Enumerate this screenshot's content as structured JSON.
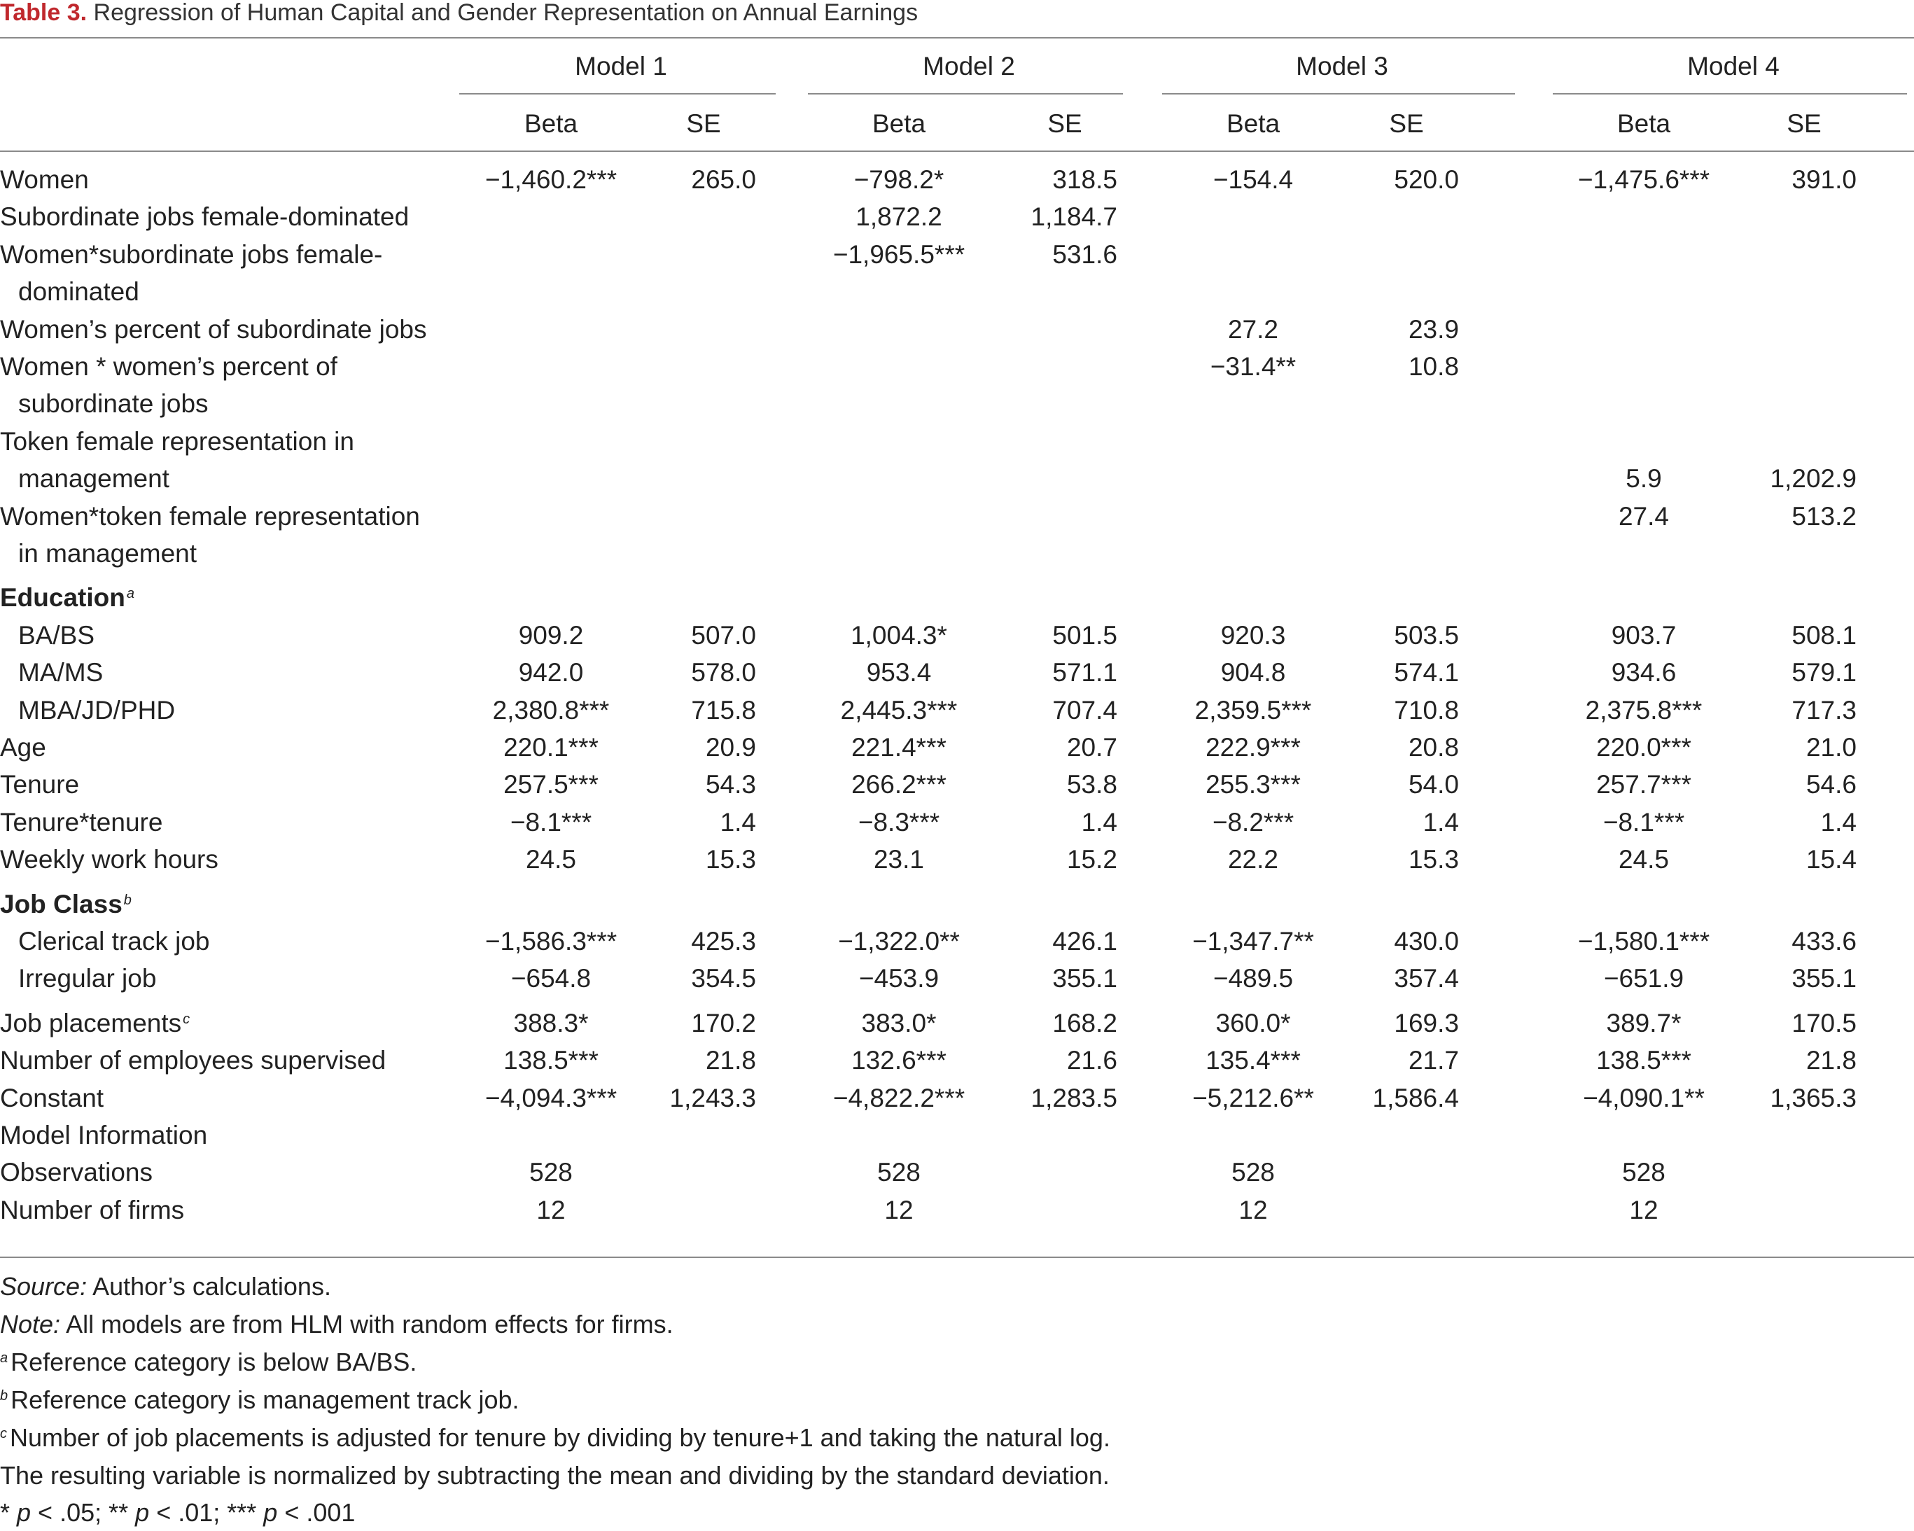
{
  "title": {
    "label": "Table 3.",
    "text": "Regression of Human Capital and Gender Representation on Annual Earnings"
  },
  "colors": {
    "label": "#c0282d",
    "text": "#222222",
    "rule": "#8a8a8a"
  },
  "models": [
    "Model 1",
    "Model 2",
    "Model 3",
    "Model 4"
  ],
  "subheaders": {
    "beta": "Beta",
    "se": "SE"
  },
  "rows": [
    {
      "label": "Women",
      "vals": [
        "−1,460.2***",
        "265.0",
        "−798.2*",
        "318.5",
        "−154.4",
        "520.0",
        "−1,475.6***",
        "391.0"
      ]
    },
    {
      "label": "Subordinate jobs female-dominated",
      "vals": [
        "",
        "",
        "1,872.2",
        "1,184.7",
        "",
        "",
        "",
        ""
      ]
    },
    {
      "label": "Women*subordinate jobs female-",
      "vals": [
        "",
        "",
        "−1,965.5***",
        "531.6",
        "",
        "",
        "",
        ""
      ]
    },
    {
      "label": "dominated",
      "indent": true,
      "vals": [
        "",
        "",
        "",
        "",
        "",
        "",
        "",
        ""
      ]
    },
    {
      "label": "Women’s percent of subordinate jobs",
      "vals": [
        "",
        "",
        "",
        "",
        "27.2",
        "23.9",
        "",
        ""
      ]
    },
    {
      "label": "Women * women’s percent of",
      "vals": [
        "",
        "",
        "",
        "",
        "−31.4**",
        "10.8",
        "",
        ""
      ]
    },
    {
      "label": "subordinate jobs",
      "indent": true,
      "vals": [
        "",
        "",
        "",
        "",
        "",
        "",
        "",
        ""
      ]
    },
    {
      "label": "Token female representation in",
      "vals": [
        "",
        "",
        "",
        "",
        "",
        "",
        "",
        ""
      ]
    },
    {
      "label": "management",
      "indent": true,
      "vals": [
        "",
        "",
        "",
        "",
        "",
        "",
        "5.9",
        "1,202.9"
      ]
    },
    {
      "label": "Women*token female representation",
      "vals": [
        "",
        "",
        "",
        "",
        "",
        "",
        "27.4",
        "513.2"
      ]
    },
    {
      "label": "in management",
      "indent": true,
      "vals": [
        "",
        "",
        "",
        "",
        "",
        "",
        "",
        ""
      ]
    },
    {
      "label": "Education",
      "bold": true,
      "sup": "a",
      "vals": [
        "",
        "",
        "",
        "",
        "",
        "",
        "",
        ""
      ]
    },
    {
      "label": "BA/BS",
      "indent": true,
      "vals": [
        "909.2",
        "507.0",
        "1,004.3*",
        "501.5",
        "920.3",
        "503.5",
        "903.7",
        "508.1"
      ]
    },
    {
      "label": "MA/MS",
      "indent": true,
      "vals": [
        "942.0",
        "578.0",
        "953.4",
        "571.1",
        "904.8",
        "574.1",
        "934.6",
        "579.1"
      ]
    },
    {
      "label": "MBA/JD/PHD",
      "indent": true,
      "vals": [
        "2,380.8***",
        "715.8",
        "2,445.3***",
        "707.4",
        "2,359.5***",
        "710.8",
        "2,375.8***",
        "717.3"
      ]
    },
    {
      "label": "Age",
      "vals": [
        "220.1***",
        "20.9",
        "221.4***",
        "20.7",
        "222.9***",
        "20.8",
        "220.0***",
        "21.0"
      ]
    },
    {
      "label": "Tenure",
      "vals": [
        "257.5***",
        "54.3",
        "266.2***",
        "53.8",
        "255.3***",
        "54.0",
        "257.7***",
        "54.6"
      ]
    },
    {
      "label": "Tenure*tenure",
      "vals": [
        "−8.1***",
        "1.4",
        "−8.3***",
        "1.4",
        "−8.2***",
        "1.4",
        "−8.1***",
        "1.4"
      ]
    },
    {
      "label": "Weekly work hours",
      "vals": [
        "24.5",
        "15.3",
        "23.1",
        "15.2",
        "22.2",
        "15.3",
        "24.5",
        "15.4"
      ]
    },
    {
      "label": "Job Class",
      "bold": true,
      "sup": "b",
      "vals": [
        "",
        "",
        "",
        "",
        "",
        "",
        "",
        ""
      ]
    },
    {
      "label": "Clerical track job",
      "indent": true,
      "vals": [
        "−1,586.3***",
        "425.3",
        "−1,322.0**",
        "426.1",
        "−1,347.7**",
        "430.0",
        "−1,580.1***",
        "433.6"
      ]
    },
    {
      "label": "Irregular job",
      "indent": true,
      "vals": [
        "−654.8",
        "354.5",
        "−453.9",
        "355.1",
        "−489.5",
        "357.4",
        "−651.9",
        "355.1"
      ]
    },
    {
      "label": "Job placements",
      "sup": "c",
      "vals": [
        "388.3*",
        "170.2",
        "383.0*",
        "168.2",
        "360.0*",
        "169.3",
        "389.7*",
        "170.5"
      ]
    },
    {
      "label": "Number of employees supervised",
      "vals": [
        "138.5***",
        "21.8",
        "132.6***",
        "21.6",
        "135.4***",
        "21.7",
        "138.5***",
        "21.8"
      ]
    },
    {
      "label": "Constant",
      "vals": [
        "−4,094.3***",
        "1,243.3",
        "−4,822.2***",
        "1,283.5",
        "−5,212.6**",
        "1,586.4",
        "−4,090.1**",
        "1,365.3"
      ]
    },
    {
      "label": "Model Information",
      "vals": [
        "",
        "",
        "",
        "",
        "",
        "",
        "",
        ""
      ]
    },
    {
      "label": "Observations",
      "vals": [
        "528",
        "",
        "528",
        "",
        "528",
        "",
        "528",
        ""
      ]
    },
    {
      "label": "Number of firms",
      "vals": [
        "12",
        "",
        "12",
        "",
        "12",
        "",
        "12",
        ""
      ]
    }
  ],
  "notes": {
    "source_label": "Source:",
    "source_text": " Author’s calculations.",
    "note_label": "Note:",
    "note_text": " All models are from HLM with random effects for firms.",
    "a_mark": "a",
    "a_text": "Reference category is below BA/BS.",
    "b_mark": "b",
    "b_text": "Reference category is management track job.",
    "c_mark": "c",
    "c_text": "Number of job placements is adjusted for tenure by dividing by tenure+1 and taking the natural log.",
    "c_text2": "The resulting variable is normalized by subtracting the mean and dividing by the standard deviation.",
    "sig_1": " * ",
    "sig_p1": "p",
    "sig_2": " < .05; ** ",
    "sig_p2": "p",
    "sig_3": " < .01; *** ",
    "sig_p3": "p",
    "sig_4": " < .001"
  }
}
